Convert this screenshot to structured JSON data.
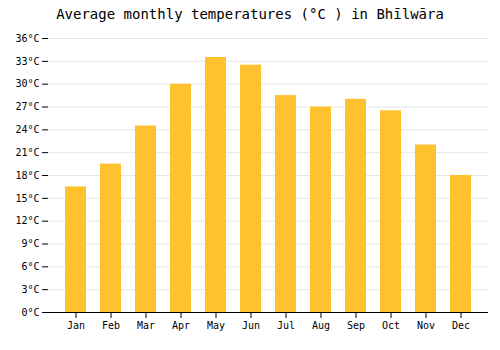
{
  "chart_data": {
    "type": "bar",
    "title": "Average monthly temperatures (°C ) in Bhīlwāra",
    "categories": [
      "Jan",
      "Feb",
      "Mar",
      "Apr",
      "May",
      "Jun",
      "Jul",
      "Aug",
      "Sep",
      "Oct",
      "Nov",
      "Dec"
    ],
    "values": [
      16.5,
      19.5,
      24.5,
      30.0,
      33.5,
      32.5,
      28.5,
      27.0,
      28.0,
      26.5,
      22.0,
      18.0
    ],
    "color": "#FFC12E",
    "ylim": [
      0,
      36
    ],
    "yticks": [
      {
        "value": 0,
        "label": "0°C"
      },
      {
        "value": 3,
        "label": "3°C"
      },
      {
        "value": 6,
        "label": "6°C"
      },
      {
        "value": 9,
        "label": "9°C"
      },
      {
        "value": 12,
        "label": "12°C"
      },
      {
        "value": 15,
        "label": "15°C"
      },
      {
        "value": 18,
        "label": "18°C"
      },
      {
        "value": 21,
        "label": "21°C"
      },
      {
        "value": 24,
        "label": "24°C"
      },
      {
        "value": 27,
        "label": "27°C"
      },
      {
        "value": 30,
        "label": "30°C"
      },
      {
        "value": 33,
        "label": "33°C"
      },
      {
        "value": 36,
        "label": "36°C"
      }
    ],
    "grid": true
  }
}
